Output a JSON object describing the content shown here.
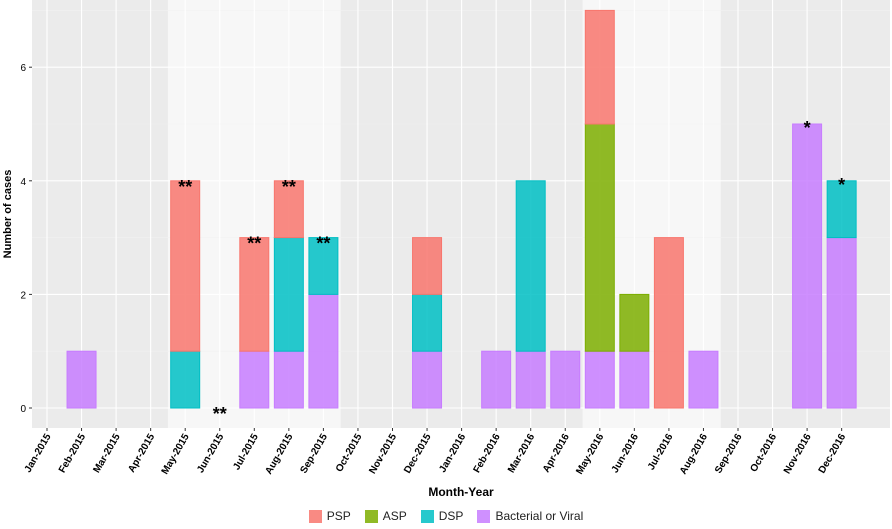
{
  "chart_data": {
    "type": "bar",
    "stacked": true,
    "xlabel": "Month-Year",
    "ylabel": "Number of cases",
    "ylim": [
      0,
      7.2
    ],
    "yticks": [
      0,
      2,
      4,
      6
    ],
    "grid": true,
    "legend_position": "bottom",
    "shaded_periods": [
      [
        "May-2015",
        "Sep-2015"
      ],
      [
        "May-2016",
        "Aug-2016"
      ]
    ],
    "categories": [
      "Jan-2015",
      "Feb-2015",
      "Mar-2015",
      "Apr-2015",
      "May-2015",
      "Jun-2015",
      "Jul-2015",
      "Aug-2015",
      "Sep-2015",
      "Oct-2015",
      "Nov-2015",
      "Dec-2015",
      "Jan-2016",
      "Feb-2016",
      "Mar-2016",
      "Apr-2016",
      "May-2016",
      "Jun-2016",
      "Jul-2016",
      "Aug-2016",
      "Sep-2016",
      "Oct-2016",
      "Nov-2016",
      "Dec-2016"
    ],
    "series": [
      {
        "name": "Bacterial or Viral",
        "color": "#c77cff",
        "values": [
          0,
          1,
          0,
          0,
          0,
          0,
          1,
          1,
          2,
          0,
          0,
          1,
          0,
          1,
          1,
          1,
          1,
          1,
          0,
          1,
          0,
          0,
          5,
          3
        ]
      },
      {
        "name": "DSP",
        "color": "#00bfc4",
        "values": [
          0,
          0,
          0,
          0,
          1,
          0,
          0,
          2,
          1,
          0,
          0,
          1,
          0,
          0,
          3,
          0,
          0,
          0,
          0,
          0,
          0,
          0,
          0,
          1
        ]
      },
      {
        "name": "ASP",
        "color": "#7cae00",
        "values": [
          0,
          0,
          0,
          0,
          0,
          0,
          0,
          0,
          0,
          0,
          0,
          0,
          0,
          0,
          0,
          0,
          4,
          1,
          0,
          0,
          0,
          0,
          0,
          0
        ]
      },
      {
        "name": "PSP",
        "color": "#f8766d",
        "values": [
          0,
          0,
          0,
          0,
          3,
          0,
          2,
          1,
          0,
          0,
          0,
          1,
          0,
          0,
          0,
          0,
          2,
          0,
          3,
          0,
          0,
          0,
          0,
          0
        ]
      }
    ],
    "legend_order": [
      "PSP",
      "ASP",
      "DSP",
      "Bacterial or Viral"
    ],
    "annotations": [
      {
        "category": "May-2015",
        "y": 4,
        "text": "**"
      },
      {
        "category": "Jun-2015",
        "y": 0,
        "text": "**"
      },
      {
        "category": "Jul-2015",
        "y": 3,
        "text": "**"
      },
      {
        "category": "Aug-2015",
        "y": 4,
        "text": "**"
      },
      {
        "category": "Sep-2015",
        "y": 3,
        "text": "**"
      },
      {
        "category": "Nov-2016",
        "y": 5,
        "text": "*"
      },
      {
        "category": "Dec-2016",
        "y": 4,
        "text": "*"
      }
    ]
  }
}
